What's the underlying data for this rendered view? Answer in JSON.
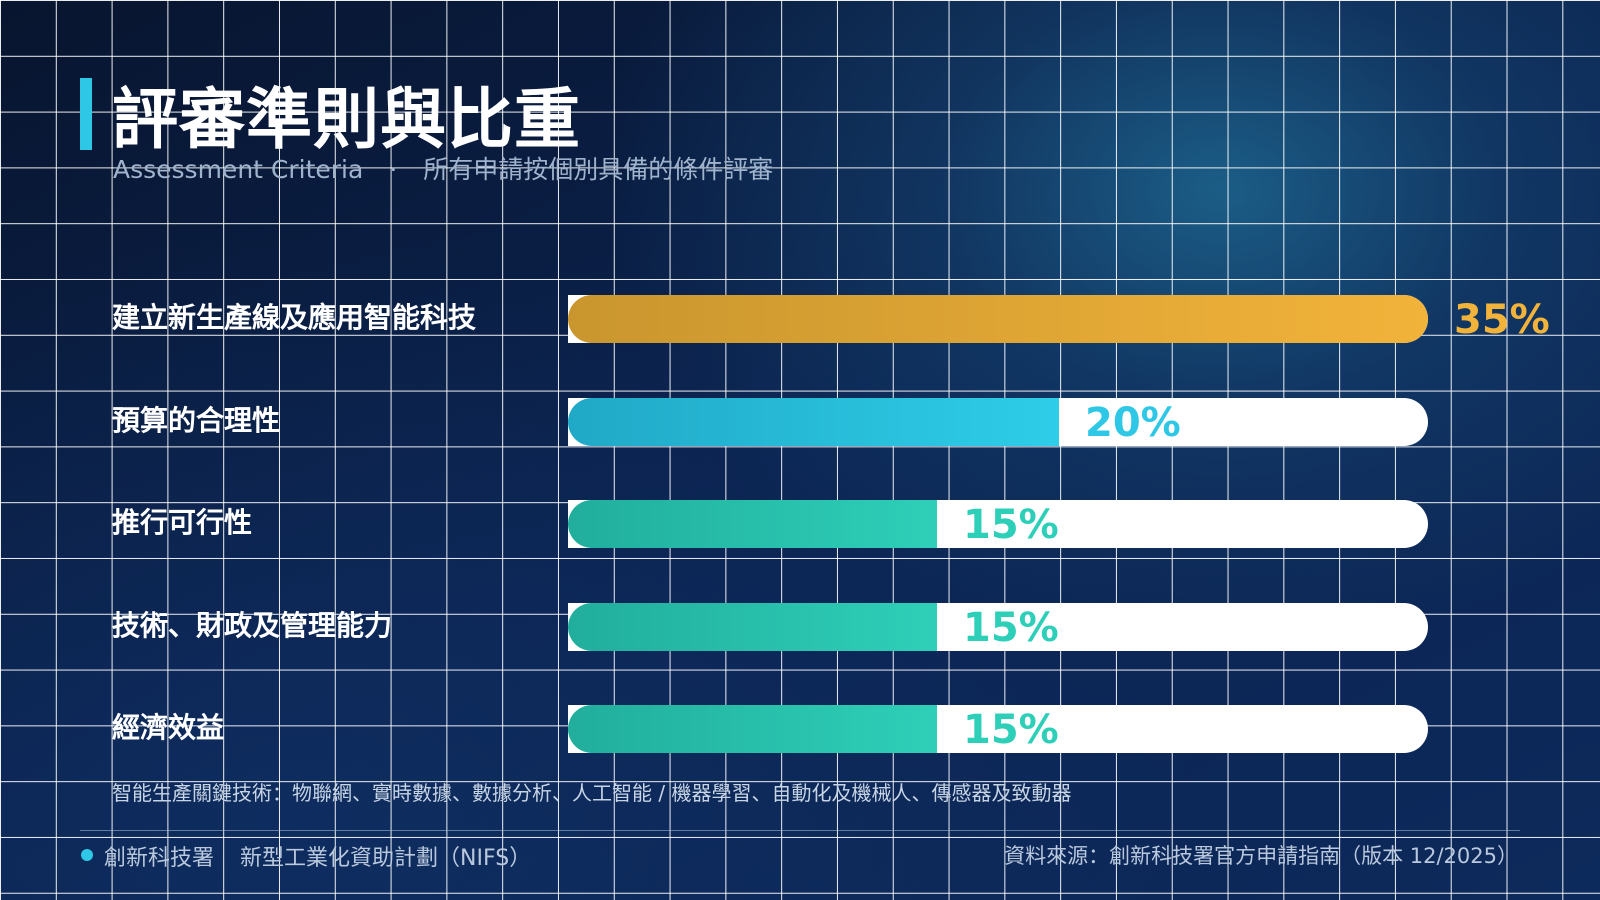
{
  "slide": {
    "title": "評審準則與比重",
    "subtitle_en": "Assessment Criteria",
    "subtitle_sep": "·",
    "subtitle_zh": "所有申請按個別具備的條件評審",
    "note": "智能生產關鍵技術：物聯網、實時數據、數據分析、人工智能 / 機器學習、自動化及機械人、傳感器及致動器",
    "footer_org": "創新科技署",
    "footer_program": "新型工業化資助計劃（NIFS）",
    "footer_source": "資料來源：創新科技署官方申請指南（版本 12/2025）"
  },
  "colors": {
    "accent": "#2ec8e6",
    "gold": "#f2b33a",
    "cyan": "#2ec8e6",
    "teal": "#2ecfb8"
  },
  "chart_data": {
    "type": "bar",
    "orientation": "horizontal",
    "categories": [
      "建立新生產線及應用智能科技",
      "預算的合理性",
      "推行可行性",
      "技術、財政及管理能力",
      "經濟效益"
    ],
    "values": [
      35,
      20,
      15,
      15,
      15
    ],
    "value_labels": [
      "35%",
      "20%",
      "15%",
      "15%",
      "15%"
    ],
    "xlim": [
      0,
      35
    ],
    "bar_colors": [
      [
        "#c9962e",
        "#f2b33a"
      ],
      [
        "#20a9c7",
        "#2ecde8"
      ],
      [
        "#21ae9c",
        "#2ecfb8"
      ],
      [
        "#21ae9c",
        "#2ecfb8"
      ],
      [
        "#21ae9c",
        "#2ecfb8"
      ]
    ],
    "label_colors": [
      "#f2b33a",
      "#2ec8e6",
      "#2ecfb8",
      "#2ecfb8",
      "#2ecfb8"
    ],
    "grid": true
  }
}
